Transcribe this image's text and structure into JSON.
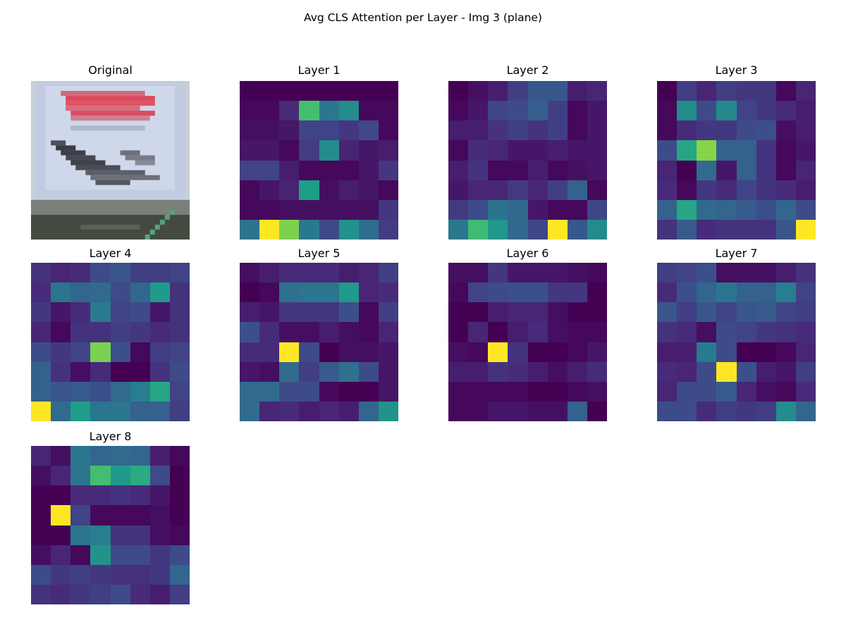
{
  "figure": {
    "title": "Avg CLS Attention per Layer - Img 3 (plane)",
    "original_title": "Original"
  },
  "chart_data": {
    "type": "heatmap",
    "title": "Avg CLS Attention per Layer - Img 3 (plane)",
    "colormap": "viridis",
    "grid": [
      8,
      8
    ],
    "panels": [
      {
        "title": "Layer 1",
        "values": [
          [
            0.0,
            0.0,
            0.0,
            0.0,
            0.0,
            0.0,
            0.0,
            0.0
          ],
          [
            0.02,
            0.02,
            0.12,
            0.7,
            0.4,
            0.48,
            0.02,
            0.02
          ],
          [
            0.04,
            0.04,
            0.06,
            0.2,
            0.2,
            0.16,
            0.22,
            0.02
          ],
          [
            0.06,
            0.06,
            0.02,
            0.18,
            0.48,
            0.1,
            0.06,
            0.08
          ],
          [
            0.2,
            0.2,
            0.08,
            0.02,
            0.02,
            0.02,
            0.06,
            0.16
          ],
          [
            0.02,
            0.06,
            0.1,
            0.55,
            0.04,
            0.08,
            0.06,
            0.02
          ],
          [
            0.02,
            0.02,
            0.04,
            0.04,
            0.04,
            0.04,
            0.04,
            0.16
          ],
          [
            0.38,
            1.0,
            0.8,
            0.4,
            0.22,
            0.5,
            0.36,
            0.18
          ]
        ]
      },
      {
        "title": "Layer 2",
        "values": [
          [
            0.04,
            0.08,
            0.12,
            0.22,
            0.3,
            0.3,
            0.12,
            0.14
          ],
          [
            0.06,
            0.1,
            0.24,
            0.26,
            0.32,
            0.22,
            0.06,
            0.1
          ],
          [
            0.12,
            0.12,
            0.18,
            0.22,
            0.18,
            0.22,
            0.06,
            0.1
          ],
          [
            0.06,
            0.16,
            0.14,
            0.1,
            0.1,
            0.12,
            0.1,
            0.1
          ],
          [
            0.12,
            0.18,
            0.06,
            0.06,
            0.12,
            0.06,
            0.08,
            0.1
          ],
          [
            0.1,
            0.14,
            0.14,
            0.2,
            0.14,
            0.22,
            0.34,
            0.06
          ],
          [
            0.2,
            0.26,
            0.4,
            0.36,
            0.1,
            0.06,
            0.06,
            0.24
          ],
          [
            0.42,
            0.7,
            0.55,
            0.36,
            0.24,
            1.0,
            0.3,
            0.5
          ]
        ]
      },
      {
        "title": "Layer 3",
        "values": [
          [
            0.02,
            0.2,
            0.12,
            0.2,
            0.18,
            0.18,
            0.04,
            0.12
          ],
          [
            0.04,
            0.5,
            0.24,
            0.48,
            0.22,
            0.18,
            0.14,
            0.1
          ],
          [
            0.04,
            0.14,
            0.18,
            0.18,
            0.24,
            0.26,
            0.06,
            0.1
          ],
          [
            0.24,
            0.6,
            0.82,
            0.32,
            0.32,
            0.16,
            0.04,
            0.08
          ],
          [
            0.12,
            0.02,
            0.36,
            0.08,
            0.32,
            0.16,
            0.04,
            0.12
          ],
          [
            0.14,
            0.04,
            0.18,
            0.14,
            0.22,
            0.16,
            0.14,
            0.1
          ],
          [
            0.32,
            0.6,
            0.36,
            0.34,
            0.3,
            0.26,
            0.34,
            0.24
          ],
          [
            0.16,
            0.3,
            0.14,
            0.16,
            0.16,
            0.16,
            0.28,
            1.0
          ]
        ]
      },
      {
        "title": "Layer 4",
        "values": [
          [
            0.16,
            0.12,
            0.14,
            0.24,
            0.28,
            0.2,
            0.2,
            0.22
          ],
          [
            0.14,
            0.4,
            0.34,
            0.36,
            0.24,
            0.34,
            0.55,
            0.16
          ],
          [
            0.18,
            0.08,
            0.14,
            0.42,
            0.22,
            0.24,
            0.08,
            0.16
          ],
          [
            0.12,
            0.04,
            0.16,
            0.16,
            0.2,
            0.18,
            0.14,
            0.16
          ],
          [
            0.24,
            0.18,
            0.22,
            0.8,
            0.26,
            0.04,
            0.2,
            0.22
          ],
          [
            0.32,
            0.16,
            0.06,
            0.14,
            0.02,
            0.02,
            0.16,
            0.24
          ],
          [
            0.32,
            0.28,
            0.3,
            0.26,
            0.36,
            0.44,
            0.6,
            0.22
          ],
          [
            1.0,
            0.36,
            0.56,
            0.4,
            0.4,
            0.32,
            0.32,
            0.2
          ]
        ]
      },
      {
        "title": "Layer 5",
        "values": [
          [
            0.06,
            0.1,
            0.14,
            0.14,
            0.14,
            0.1,
            0.12,
            0.2
          ],
          [
            0.02,
            0.04,
            0.38,
            0.4,
            0.4,
            0.55,
            0.12,
            0.14
          ],
          [
            0.1,
            0.08,
            0.18,
            0.18,
            0.18,
            0.26,
            0.04,
            0.2
          ],
          [
            0.26,
            0.14,
            0.06,
            0.06,
            0.1,
            0.06,
            0.04,
            0.12
          ],
          [
            0.14,
            0.14,
            1.0,
            0.24,
            0.02,
            0.06,
            0.06,
            0.08
          ],
          [
            0.08,
            0.06,
            0.36,
            0.2,
            0.3,
            0.38,
            0.24,
            0.08
          ],
          [
            0.36,
            0.36,
            0.24,
            0.24,
            0.04,
            0.02,
            0.02,
            0.08
          ],
          [
            0.36,
            0.12,
            0.14,
            0.1,
            0.12,
            0.1,
            0.34,
            0.52
          ]
        ]
      },
      {
        "title": "Layer 6",
        "values": [
          [
            0.06,
            0.06,
            0.18,
            0.08,
            0.08,
            0.08,
            0.06,
            0.04
          ],
          [
            0.04,
            0.22,
            0.24,
            0.26,
            0.26,
            0.18,
            0.18,
            0.02
          ],
          [
            0.02,
            0.02,
            0.1,
            0.12,
            0.12,
            0.06,
            0.02,
            0.02
          ],
          [
            0.02,
            0.12,
            0.02,
            0.1,
            0.14,
            0.06,
            0.04,
            0.04
          ],
          [
            0.06,
            0.04,
            1.0,
            0.16,
            0.02,
            0.02,
            0.04,
            0.08
          ],
          [
            0.1,
            0.1,
            0.16,
            0.14,
            0.1,
            0.06,
            0.1,
            0.14
          ],
          [
            0.04,
            0.04,
            0.04,
            0.04,
            0.02,
            0.02,
            0.04,
            0.06
          ],
          [
            0.04,
            0.04,
            0.08,
            0.08,
            0.06,
            0.06,
            0.32,
            0.02
          ]
        ]
      },
      {
        "title": "Layer 7",
        "values": [
          [
            0.2,
            0.22,
            0.26,
            0.06,
            0.06,
            0.06,
            0.1,
            0.16
          ],
          [
            0.14,
            0.26,
            0.34,
            0.4,
            0.32,
            0.32,
            0.44,
            0.22
          ],
          [
            0.28,
            0.2,
            0.28,
            0.22,
            0.28,
            0.3,
            0.22,
            0.2
          ],
          [
            0.16,
            0.14,
            0.06,
            0.24,
            0.22,
            0.18,
            0.16,
            0.14
          ],
          [
            0.1,
            0.1,
            0.42,
            0.24,
            0.02,
            0.02,
            0.04,
            0.12
          ],
          [
            0.14,
            0.12,
            0.24,
            1.0,
            0.26,
            0.1,
            0.08,
            0.2
          ],
          [
            0.12,
            0.24,
            0.24,
            0.3,
            0.12,
            0.06,
            0.04,
            0.14
          ],
          [
            0.24,
            0.24,
            0.14,
            0.2,
            0.18,
            0.2,
            0.5,
            0.34
          ]
        ]
      },
      {
        "title": "Layer 8",
        "values": [
          [
            0.12,
            0.06,
            0.4,
            0.34,
            0.36,
            0.34,
            0.1,
            0.04
          ],
          [
            0.06,
            0.12,
            0.4,
            0.7,
            0.55,
            0.62,
            0.24,
            0.02
          ],
          [
            0.02,
            0.02,
            0.14,
            0.14,
            0.16,
            0.14,
            0.08,
            0.02
          ],
          [
            0.02,
            1.0,
            0.22,
            0.04,
            0.04,
            0.04,
            0.06,
            0.02
          ],
          [
            0.02,
            0.02,
            0.4,
            0.44,
            0.16,
            0.16,
            0.06,
            0.04
          ],
          [
            0.06,
            0.12,
            0.04,
            0.52,
            0.24,
            0.24,
            0.18,
            0.24
          ],
          [
            0.24,
            0.18,
            0.2,
            0.18,
            0.16,
            0.16,
            0.18,
            0.34
          ],
          [
            0.16,
            0.14,
            0.18,
            0.2,
            0.24,
            0.14,
            0.1,
            0.2
          ]
        ]
      }
    ]
  }
}
